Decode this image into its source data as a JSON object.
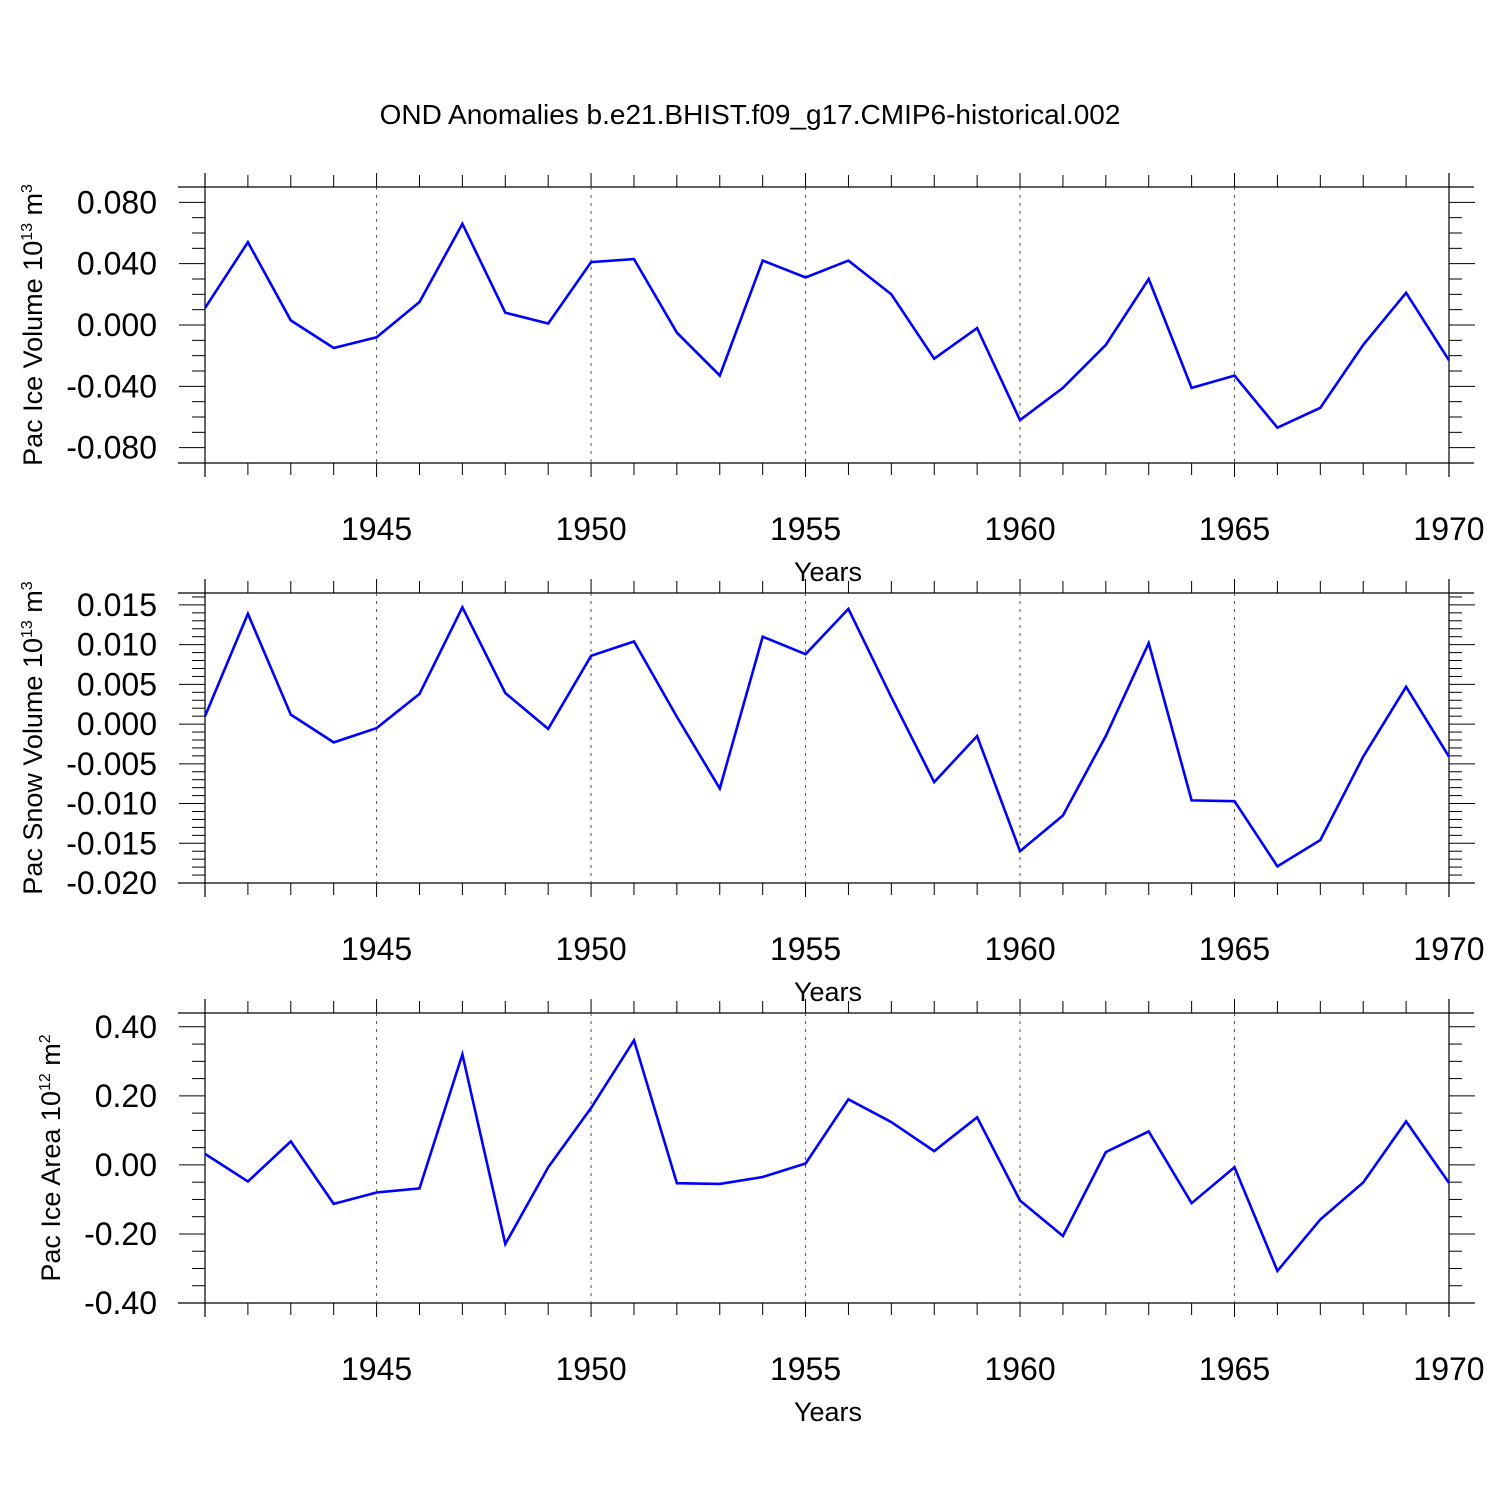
{
  "title": "OND Anomalies b.e21.BHIST.f09_g17.CMIP6-historical.002",
  "line_color": "#0000ff",
  "chart_data": [
    {
      "type": "line",
      "title": "OND Anomalies b.e21.BHIST.f09_g17.CMIP6-historical.002",
      "xlabel": "Years",
      "ylabel": {
        "text": "Pac Ice Volume 10",
        "exp": "13",
        "unit": " m",
        "unit_exp": "3"
      },
      "xlim": [
        1941,
        1970
      ],
      "ylim": [
        -0.09,
        0.09
      ],
      "yticks": [
        -0.08,
        -0.04,
        0.0,
        0.04,
        0.08
      ],
      "ytick_labels": [
        "-0.080",
        "-0.040",
        "0.000",
        "0.040",
        "0.080"
      ],
      "yminor_step": 0.01,
      "xticks": [
        1945,
        1950,
        1955,
        1960,
        1965,
        1970
      ],
      "xtick_labels": [
        "1945",
        "1950",
        "1955",
        "1960",
        "1965",
        "1970"
      ],
      "grid": "vertical dashed at major x ticks",
      "x": [
        1941,
        1942,
        1943,
        1944,
        1945,
        1946,
        1947,
        1948,
        1949,
        1950,
        1951,
        1952,
        1953,
        1954,
        1955,
        1956,
        1957,
        1958,
        1959,
        1960,
        1961,
        1962,
        1963,
        1964,
        1965,
        1966,
        1967,
        1968,
        1969,
        1970
      ],
      "series": [
        {
          "name": "Pac Ice Volume",
          "values": [
            0.011,
            0.054,
            0.003,
            -0.015,
            -0.008,
            0.015,
            0.066,
            0.008,
            0.001,
            0.041,
            0.043,
            -0.005,
            -0.033,
            0.042,
            0.031,
            0.042,
            0.02,
            -0.022,
            -0.002,
            -0.062,
            -0.041,
            -0.013,
            0.03,
            -0.041,
            -0.033,
            -0.067,
            -0.054,
            -0.013,
            0.021,
            -0.023
          ]
        }
      ]
    },
    {
      "type": "line",
      "xlabel": "Years",
      "ylabel": {
        "text": "Pac Snow Volume 10",
        "exp": "13",
        "unit": " m",
        "unit_exp": "3"
      },
      "xlim": [
        1941,
        1970
      ],
      "ylim": [
        -0.02,
        0.0165
      ],
      "yticks": [
        -0.02,
        -0.015,
        -0.01,
        -0.005,
        0.0,
        0.005,
        0.01,
        0.015
      ],
      "ytick_labels": [
        "-0.020",
        "-0.015",
        "-0.010",
        "-0.005",
        "0.000",
        "0.005",
        "0.010",
        "0.015"
      ],
      "yminor_step": 0.001,
      "xticks": [
        1945,
        1950,
        1955,
        1960,
        1965,
        1970
      ],
      "xtick_labels": [
        "1945",
        "1950",
        "1955",
        "1960",
        "1965",
        "1970"
      ],
      "grid": "vertical dashed at major x ticks",
      "x": [
        1941,
        1942,
        1943,
        1944,
        1945,
        1946,
        1947,
        1948,
        1949,
        1950,
        1951,
        1952,
        1953,
        1954,
        1955,
        1956,
        1957,
        1958,
        1959,
        1960,
        1961,
        1962,
        1963,
        1964,
        1965,
        1966,
        1967,
        1968,
        1969,
        1970
      ],
      "series": [
        {
          "name": "Pac Snow Volume",
          "values": [
            0.001,
            0.0139,
            0.0012,
            -0.0023,
            -0.0005,
            0.0038,
            0.0147,
            0.0039,
            -0.0006,
            0.0086,
            0.0104,
            0.0009,
            -0.0081,
            0.011,
            0.0088,
            0.0145,
            0.0034,
            -0.0073,
            -0.0015,
            -0.016,
            -0.0115,
            -0.0015,
            0.0102,
            -0.0096,
            -0.0097,
            -0.0179,
            -0.0146,
            -0.0041,
            0.0047,
            -0.0041
          ]
        }
      ]
    },
    {
      "type": "line",
      "xlabel": "Years",
      "ylabel": {
        "text": "Pac Ice Area 10",
        "exp": "12",
        "unit": " m",
        "unit_exp": "2"
      },
      "xlim": [
        1941,
        1970
      ],
      "ylim": [
        -0.4,
        0.44
      ],
      "yticks": [
        -0.4,
        -0.2,
        0.0,
        0.2,
        0.4
      ],
      "ytick_labels": [
        "-0.40",
        "-0.20",
        "0.00",
        "0.20",
        "0.40"
      ],
      "yminor_step": 0.05,
      "xticks": [
        1945,
        1950,
        1955,
        1960,
        1965,
        1970
      ],
      "xtick_labels": [
        "1945",
        "1950",
        "1955",
        "1960",
        "1965",
        "1970"
      ],
      "grid": "vertical dashed at major x ticks",
      "x": [
        1941,
        1942,
        1943,
        1944,
        1945,
        1946,
        1947,
        1948,
        1949,
        1950,
        1951,
        1952,
        1953,
        1954,
        1955,
        1956,
        1957,
        1958,
        1959,
        1960,
        1961,
        1962,
        1963,
        1964,
        1965,
        1966,
        1967,
        1968,
        1969,
        1970
      ],
      "series": [
        {
          "name": "Pac Ice Area",
          "values": [
            0.032,
            -0.048,
            0.068,
            -0.113,
            -0.08,
            -0.068,
            0.32,
            -0.229,
            -0.007,
            0.165,
            0.361,
            -0.053,
            -0.055,
            -0.035,
            0.004,
            0.19,
            0.124,
            0.04,
            0.138,
            -0.103,
            -0.206,
            0.037,
            0.097,
            -0.111,
            -0.007,
            -0.307,
            -0.158,
            -0.051,
            0.126,
            -0.052
          ]
        }
      ]
    }
  ]
}
